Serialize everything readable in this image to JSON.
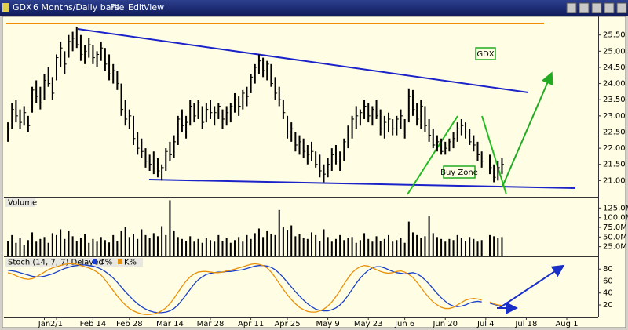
{
  "window": {
    "title": "GDX",
    "subtitle": "6 Months/Daily bars",
    "menu": [
      "File",
      "Edit",
      "View"
    ]
  },
  "chart_data": [
    {
      "type": "ohlc",
      "color": "#000000",
      "grid": false,
      "categories": [
        null,
        null,
        null,
        null,
        null,
        null,
        null,
        null,
        null,
        "Jan",
        null,
        null,
        "2/1",
        null,
        null,
        null,
        null,
        null,
        null,
        null,
        null,
        "Feb 14",
        null,
        null,
        null,
        null,
        null,
        null,
        null,
        null,
        "Feb 28",
        null,
        null,
        null,
        null,
        null,
        null,
        null,
        null,
        null,
        "Mar 14",
        null,
        null,
        null,
        null,
        null,
        null,
        null,
        null,
        null,
        "Mar 28",
        null,
        null,
        null,
        null,
        null,
        null,
        null,
        null,
        null,
        "Apr 11",
        null,
        null,
        null,
        null,
        null,
        null,
        null,
        null,
        "Apr 25",
        null,
        null,
        null,
        null,
        null,
        null,
        null,
        null,
        null,
        "May 9",
        null,
        null,
        null,
        null,
        null,
        null,
        null,
        null,
        null,
        "May 23",
        null,
        null,
        null,
        null,
        null,
        null,
        null,
        null,
        "Jun 6",
        null,
        null,
        null,
        null,
        null,
        null,
        null,
        null,
        null,
        "Jun 20",
        null,
        null,
        null,
        null,
        null,
        null,
        null,
        null,
        null,
        "Jul 4",
        null,
        null,
        null,
        null,
        null,
        null,
        null,
        null,
        null,
        "Jul 18",
        null,
        null,
        null,
        null,
        null,
        null,
        null,
        null,
        null,
        "Aug 1",
        null,
        null,
        null,
        null,
        null,
        null,
        null
      ],
      "high": [
        22.8,
        23.4,
        23.5,
        23.2,
        23.3,
        23.0,
        23.9,
        24.1,
        23.9,
        24.3,
        24.5,
        24.2,
        24.9,
        25.3,
        25.0,
        25.5,
        25.6,
        25.75,
        25.5,
        25.2,
        25.4,
        25.2,
        25.0,
        25.3,
        25.1,
        24.9,
        24.6,
        24.4,
        24.0,
        23.5,
        23.2,
        23.0,
        22.5,
        22.3,
        22.0,
        21.8,
        21.9,
        21.7,
        21.5,
        22.0,
        22.2,
        22.4,
        23.0,
        23.2,
        23.0,
        23.5,
        23.4,
        23.5,
        23.3,
        23.4,
        23.5,
        23.3,
        23.4,
        23.2,
        23.3,
        23.4,
        23.7,
        23.6,
        23.8,
        23.9,
        24.3,
        24.6,
        24.9,
        24.8,
        24.7,
        24.6,
        24.2,
        23.9,
        23.5,
        23.0,
        22.8,
        22.5,
        22.4,
        22.3,
        22.1,
        22.2,
        21.9,
        21.8,
        21.5,
        21.7,
        22.0,
        22.1,
        21.9,
        22.3,
        22.7,
        23.0,
        23.3,
        23.2,
        23.5,
        23.4,
        23.3,
        23.5,
        23.2,
        23.0,
        23.1,
        22.9,
        23.0,
        23.2,
        22.9,
        23.85,
        23.8,
        23.4,
        23.5,
        23.3,
        22.9,
        22.6,
        22.4,
        22.3,
        22.2,
        22.3,
        22.5,
        22.8,
        22.9,
        22.8,
        22.6,
        22.4,
        22.2,
        21.9,
        null,
        21.8,
        21.5,
        21.6,
        21.7,
        null,
        null,
        null,
        null,
        null,
        null,
        null,
        null,
        null,
        null,
        null,
        null,
        null,
        null,
        null,
        null,
        null,
        null,
        null,
        null,
        null,
        null,
        null
      ],
      "low": [
        22.2,
        22.6,
        22.8,
        22.6,
        22.7,
        22.5,
        23.1,
        23.4,
        23.2,
        23.5,
        23.9,
        23.5,
        24.1,
        24.5,
        24.3,
        24.8,
        25.0,
        25.1,
        24.7,
        24.6,
        24.8,
        24.6,
        24.5,
        24.7,
        24.4,
        24.1,
        24.0,
        23.8,
        23.0,
        22.7,
        22.6,
        22.1,
        21.8,
        21.7,
        21.4,
        21.3,
        21.2,
        21.1,
        21.0,
        21.3,
        21.6,
        21.7,
        22.1,
        22.5,
        22.3,
        22.7,
        22.8,
        22.9,
        22.6,
        22.8,
        22.9,
        22.7,
        22.9,
        22.6,
        22.7,
        22.8,
        23.1,
        23.0,
        23.2,
        23.3,
        23.7,
        24.0,
        24.3,
        24.2,
        24.1,
        23.9,
        23.5,
        23.3,
        22.9,
        22.3,
        22.2,
        21.9,
        21.8,
        21.7,
        21.5,
        21.6,
        21.4,
        21.1,
        20.95,
        21.1,
        21.3,
        21.5,
        21.3,
        21.6,
        22.0,
        22.3,
        22.6,
        22.7,
        22.9,
        22.8,
        22.7,
        22.9,
        22.4,
        22.3,
        22.5,
        22.4,
        22.4,
        22.6,
        22.3,
        22.8,
        23.0,
        22.7,
        22.6,
        22.5,
        22.2,
        22.0,
        21.9,
        21.8,
        21.8,
        21.9,
        22.0,
        22.2,
        22.4,
        22.3,
        22.1,
        21.9,
        21.6,
        21.4,
        null,
        21.2,
        20.95,
        21.0,
        21.2,
        null,
        null,
        null,
        null,
        null,
        null,
        null,
        null,
        null,
        null,
        null,
        null,
        null,
        null,
        null,
        null,
        null,
        null,
        null,
        null,
        null,
        null,
        null
      ],
      "close": [
        22.6,
        23.2,
        23.0,
        22.8,
        23.1,
        22.7,
        23.8,
        23.6,
        23.4,
        24.1,
        24.0,
        23.7,
        24.8,
        25.1,
        24.6,
        25.3,
        25.4,
        25.2,
        24.9,
        25.0,
        25.2,
        24.8,
        24.9,
        25.1,
        24.6,
        24.3,
        24.4,
        24.0,
        23.2,
        22.9,
        23.0,
        22.3,
        22.0,
        21.9,
        21.6,
        21.5,
        21.7,
        21.3,
        21.4,
        21.9,
        21.8,
        22.2,
        22.9,
        22.7,
        22.8,
        23.3,
        23.0,
        23.4,
        22.8,
        23.2,
        23.1,
        23.1,
        23.3,
        22.9,
        23.1,
        23.3,
        23.5,
        23.3,
        23.7,
        23.6,
        24.2,
        24.5,
        24.7,
        24.4,
        24.6,
        24.0,
        23.7,
        23.5,
        23.1,
        22.5,
        22.6,
        22.1,
        22.2,
        21.9,
        21.8,
        21.9,
        21.5,
        21.3,
        21.2,
        21.5,
        21.8,
        21.6,
        21.7,
        22.2,
        22.5,
        22.9,
        23.0,
        23.1,
        23.3,
        23.0,
        23.2,
        23.0,
        22.6,
        22.8,
        22.9,
        22.6,
        22.9,
        23.0,
        22.5,
        23.6,
        23.2,
        22.9,
        23.3,
        22.7,
        22.4,
        22.1,
        22.2,
        21.9,
        22.0,
        22.2,
        22.3,
        22.6,
        22.7,
        22.5,
        22.2,
        22.1,
        21.8,
        21.6,
        null,
        21.4,
        21.1,
        21.4,
        21.5,
        null,
        null,
        null,
        null,
        null,
        null,
        null,
        null,
        null,
        null,
        null,
        null,
        null,
        null,
        null,
        null,
        null,
        null,
        null,
        null,
        null,
        null,
        null
      ],
      "ylim": [
        20.5,
        26.05
      ],
      "yticks": [
        {
          "value": 21,
          "label": "21.00"
        },
        {
          "value": 21.5,
          "label": "21.50"
        },
        {
          "value": 22,
          "label": "22.00"
        },
        {
          "value": 22.5,
          "label": "22.50"
        },
        {
          "value": 23,
          "label": "23.00"
        },
        {
          "value": 23.5,
          "label": "23.50"
        },
        {
          "value": 24,
          "label": "24.00"
        },
        {
          "value": 24.5,
          "label": "24.50"
        },
        {
          "value": 25,
          "label": "25.00"
        },
        {
          "value": 25.5,
          "label": "25.50"
        }
      ],
      "annotations": [
        "GDX",
        "Buy Zone"
      ]
    },
    {
      "type": "bar",
      "title": "Volume",
      "color": "#000000",
      "grid": false,
      "values": [
        40,
        55,
        35,
        48,
        30,
        42,
        62,
        38,
        45,
        50,
        35,
        60,
        55,
        70,
        45,
        65,
        52,
        40,
        48,
        58,
        35,
        45,
        38,
        50,
        42,
        36,
        55,
        40,
        65,
        75,
        50,
        58,
        45,
        70,
        55,
        48,
        60,
        52,
        78,
        55,
        145,
        65,
        50,
        45,
        40,
        52,
        38,
        45,
        35,
        48,
        42,
        38,
        55,
        40,
        48,
        35,
        42,
        50,
        38,
        55,
        45,
        60,
        72,
        50,
        65,
        58,
        55,
        120,
        75,
        68,
        80,
        52,
        58,
        48,
        45,
        62,
        55,
        40,
        70,
        50,
        38,
        45,
        55,
        42,
        48,
        50,
        35,
        42,
        60,
        45,
        38,
        52,
        40,
        45,
        55,
        38,
        42,
        48,
        35,
        90,
        62,
        55,
        48,
        52,
        105,
        60,
        50,
        45,
        38,
        45,
        42,
        55,
        48,
        40,
        50,
        45,
        38,
        42,
        null,
        55,
        52,
        48,
        50,
        null,
        null,
        null,
        null,
        null,
        null,
        null,
        null,
        null,
        null,
        null,
        null,
        null,
        null,
        null,
        null,
        null,
        null,
        null,
        null,
        null,
        null,
        null
      ],
      "ylim": [
        0,
        152
      ],
      "yticks": [
        {
          "value": 25,
          "label": "25.0M"
        },
        {
          "value": 50,
          "label": "50.0M"
        },
        {
          "value": 75,
          "label": "75.0M"
        },
        {
          "value": 100,
          "label": "100.0M"
        },
        {
          "value": 125,
          "label": "125.0M"
        }
      ]
    },
    {
      "type": "line",
      "title": "Stoch  (14, 7, 7) Delayed",
      "grid": false,
      "series": [
        {
          "name": "D%",
          "color": "#1a3fc8",
          "values": [
            78,
            77,
            76,
            74,
            72,
            70,
            68,
            67,
            67,
            68,
            70,
            72,
            75,
            78,
            81,
            83,
            85,
            86,
            87,
            87,
            86,
            85,
            83,
            80,
            76,
            71,
            65,
            58,
            50,
            42,
            35,
            28,
            22,
            17,
            13,
            10,
            8,
            7,
            7,
            8,
            10,
            14,
            20,
            28,
            37,
            46,
            55,
            62,
            67,
            71,
            73,
            74,
            75,
            75,
            76,
            76,
            77,
            78,
            79,
            81,
            83,
            85,
            86,
            86,
            85,
            83,
            79,
            73,
            66,
            58,
            50,
            42,
            35,
            28,
            22,
            17,
            13,
            11,
            10,
            10,
            12,
            15,
            20,
            27,
            36,
            46,
            56,
            65,
            72,
            78,
            82,
            84,
            84,
            82,
            79,
            76,
            74,
            73,
            72,
            73,
            74,
            72,
            68,
            62,
            55,
            47,
            39,
            32,
            26,
            21,
            18,
            17,
            18,
            20,
            23,
            25,
            26,
            25,
            null,
            23,
            21,
            19,
            18,
            null,
            null,
            null,
            null,
            null,
            null,
            null,
            null,
            null,
            null,
            null,
            null,
            null,
            null,
            null,
            null,
            null,
            null,
            null,
            null,
            null,
            null,
            null
          ]
        },
        {
          "name": "K%",
          "color": "#e8900a",
          "values": [
            74,
            72,
            69,
            66,
            64,
            63,
            64,
            67,
            71,
            75,
            79,
            82,
            84,
            86,
            88,
            89,
            89,
            88,
            86,
            84,
            82,
            79,
            75,
            70,
            62,
            53,
            44,
            35,
            27,
            20,
            14,
            10,
            7,
            5,
            4,
            4,
            5,
            7,
            10,
            15,
            22,
            31,
            41,
            51,
            60,
            67,
            72,
            75,
            76,
            76,
            75,
            74,
            74,
            75,
            77,
            78,
            80,
            82,
            84,
            86,
            88,
            89,
            88,
            86,
            82,
            75,
            66,
            56,
            46,
            37,
            29,
            22,
            16,
            12,
            9,
            8,
            8,
            10,
            13,
            18,
            25,
            34,
            44,
            55,
            65,
            74,
            80,
            84,
            86,
            85,
            82,
            79,
            76,
            74,
            73,
            74,
            76,
            77,
            75,
            71,
            66,
            58,
            49,
            40,
            32,
            25,
            20,
            16,
            14,
            14,
            16,
            20,
            24,
            28,
            30,
            31,
            30,
            28,
            null,
            25,
            22,
            20,
            19,
            null,
            null,
            null,
            null,
            null,
            null,
            null,
            null,
            null,
            null,
            null,
            null,
            null,
            null,
            null,
            null,
            null,
            null,
            null,
            null,
            null,
            null,
            null
          ]
        }
      ],
      "ylim": [
        -1,
        100
      ],
      "yticks": [
        20,
        40,
        60,
        80
      ]
    }
  ]
}
